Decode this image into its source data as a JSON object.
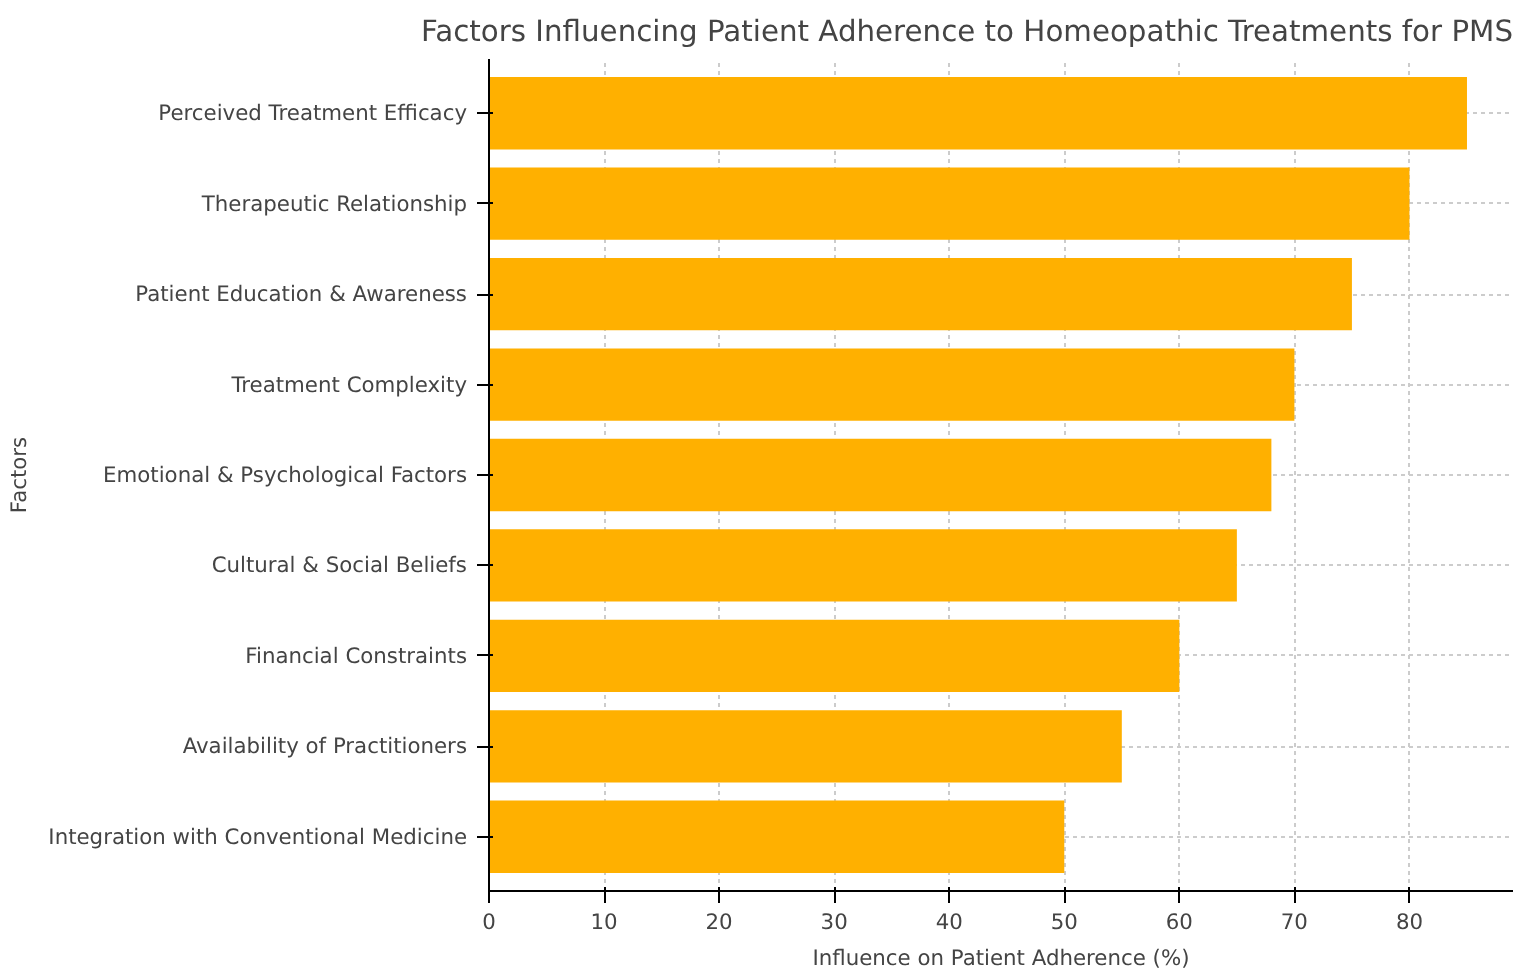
{
  "chart_data": {
    "type": "bar",
    "orientation": "horizontal",
    "title": "Factors Influencing Patient Adherence to Homeopathic Treatments for PMS",
    "xlabel": "Influence on Patient Adherence (%)",
    "ylabel": "Factors",
    "categories": [
      "Perceived Treatment Efficacy",
      "Therapeutic Relationship",
      "Patient Education & Awareness",
      "Treatment Complexity",
      "Emotional & Psychological Factors",
      "Cultural & Social Beliefs",
      "Financial Constraints",
      "Availability of Practitioners",
      "Integration with Conventional Medicine"
    ],
    "values": [
      85,
      80,
      75,
      70,
      68,
      65,
      60,
      55,
      50
    ],
    "color": "#ffb000",
    "xlim": [
      0,
      89
    ],
    "xticks": [
      0,
      10,
      20,
      30,
      40,
      50,
      60,
      70,
      80
    ],
    "grid": true
  }
}
